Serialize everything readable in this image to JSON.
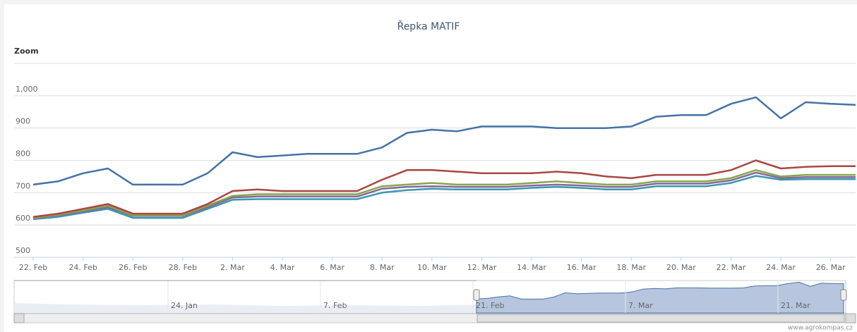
{
  "chart_data": {
    "type": "line",
    "title": "Řepka MATIF",
    "zoom_label": "Zoom",
    "credit": "www.agrokompas.cz",
    "categories": [
      "22. Feb",
      null,
      "24. Feb",
      null,
      "26. Feb",
      null,
      "28. Feb",
      null,
      "2. Mar",
      null,
      "4. Mar",
      null,
      "6. Mar",
      null,
      "8. Mar",
      null,
      "10. Mar",
      null,
      "12. Mar",
      null,
      "14. Mar",
      null,
      "16. Mar",
      null,
      "18. Mar",
      null,
      "20. Mar",
      null,
      "22. Mar",
      null,
      "24. Mar",
      null,
      "26. Mar",
      null
    ],
    "series": [
      {
        "color": "#4572A7",
        "values": [
          725,
          735,
          760,
          775,
          725,
          725,
          725,
          760,
          825,
          810,
          815,
          820,
          820,
          820,
          840,
          885,
          895,
          890,
          905,
          905,
          905,
          900,
          900,
          900,
          905,
          935,
          940,
          940,
          975,
          995,
          930,
          980,
          975,
          972
        ]
      },
      {
        "color": "#AA4643",
        "values": [
          625,
          635,
          650,
          665,
          635,
          635,
          635,
          665,
          705,
          710,
          705,
          705,
          705,
          705,
          740,
          770,
          770,
          765,
          760,
          760,
          760,
          765,
          760,
          750,
          745,
          755,
          755,
          755,
          770,
          800,
          775,
          780,
          782,
          782
        ]
      },
      {
        "color": "#89A54E",
        "values": [
          622,
          632,
          645,
          660,
          630,
          630,
          630,
          660,
          690,
          695,
          695,
          695,
          695,
          695,
          720,
          725,
          730,
          725,
          725,
          725,
          730,
          735,
          730,
          725,
          725,
          735,
          735,
          735,
          745,
          770,
          750,
          755,
          755,
          755
        ]
      },
      {
        "color": "#80699B",
        "values": [
          620,
          630,
          642,
          655,
          628,
          628,
          628,
          655,
          685,
          688,
          688,
          688,
          688,
          688,
          712,
          718,
          720,
          718,
          718,
          718,
          722,
          725,
          722,
          718,
          718,
          728,
          728,
          728,
          738,
          762,
          745,
          748,
          748,
          748
        ]
      },
      {
        "color": "#3D96AE",
        "values": [
          618,
          625,
          638,
          650,
          622,
          622,
          622,
          650,
          678,
          680,
          680,
          680,
          680,
          680,
          700,
          708,
          712,
          710,
          710,
          710,
          715,
          718,
          715,
          710,
          710,
          720,
          720,
          720,
          730,
          752,
          740,
          742,
          742,
          742
        ]
      }
    ],
    "ylim": [
      500,
      1100
    ],
    "yticks": [
      500,
      600,
      700,
      800,
      900,
      {
        "value": 1000,
        "label": "1,000"
      }
    ],
    "grid": true,
    "navigator": {
      "labels": [
        "24. Jan",
        "7. Feb",
        "21. Feb",
        "7. Mar",
        "21. Mar"
      ],
      "color": "#B7C6DE"
    }
  }
}
